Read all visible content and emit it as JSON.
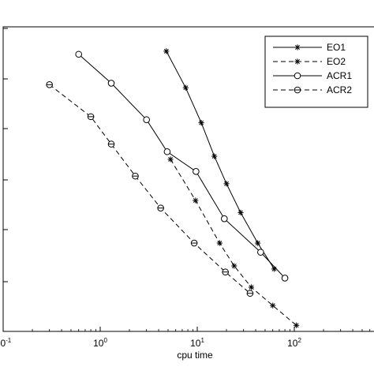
{
  "chart_data": {
    "type": "line",
    "x_scale": "log",
    "y_scale": "log",
    "xlabel": "cpu time",
    "ylabel": "",
    "xlim": [
      0.1,
      1000
    ],
    "x_ticks": [
      {
        "base": "10",
        "exp": "-1",
        "value": 0.1
      },
      {
        "base": "10",
        "exp": "0",
        "value": 1
      },
      {
        "base": "10",
        "exp": "1",
        "value": 10
      },
      {
        "base": "10",
        "exp": "2",
        "value": 100
      }
    ],
    "legend_position": "top-right",
    "grid": false,
    "series": [
      {
        "name": "EO1",
        "line": "solid",
        "marker": "star",
        "x": [
          4.8,
          7.6,
          11,
          15,
          20,
          28,
          42,
          62
        ],
        "y": [
          0.92,
          0.8,
          0.685,
          0.575,
          0.485,
          0.39,
          0.29,
          0.205
        ]
      },
      {
        "name": "EO2",
        "line": "dashed",
        "marker": "star",
        "x": [
          5.3,
          9.6,
          17,
          24,
          36,
          60,
          105
        ],
        "y": [
          0.565,
          0.43,
          0.29,
          0.215,
          0.145,
          0.085,
          0.02
        ]
      },
      {
        "name": "ACR1",
        "line": "solid",
        "marker": "circle",
        "x": [
          0.6,
          1.3,
          3.0,
          4.9,
          9.7,
          19,
          45,
          80
        ],
        "y": [
          0.91,
          0.815,
          0.695,
          0.59,
          0.525,
          0.37,
          0.26,
          0.175
        ]
      },
      {
        "name": "ACR2",
        "line": "dashed",
        "marker": "circle-dash",
        "x": [
          0.3,
          0.8,
          1.3,
          2.3,
          4.2,
          9.3,
          19.5,
          35
        ],
        "y": [
          0.81,
          0.705,
          0.615,
          0.51,
          0.405,
          0.29,
          0.195,
          0.125
        ]
      }
    ]
  }
}
